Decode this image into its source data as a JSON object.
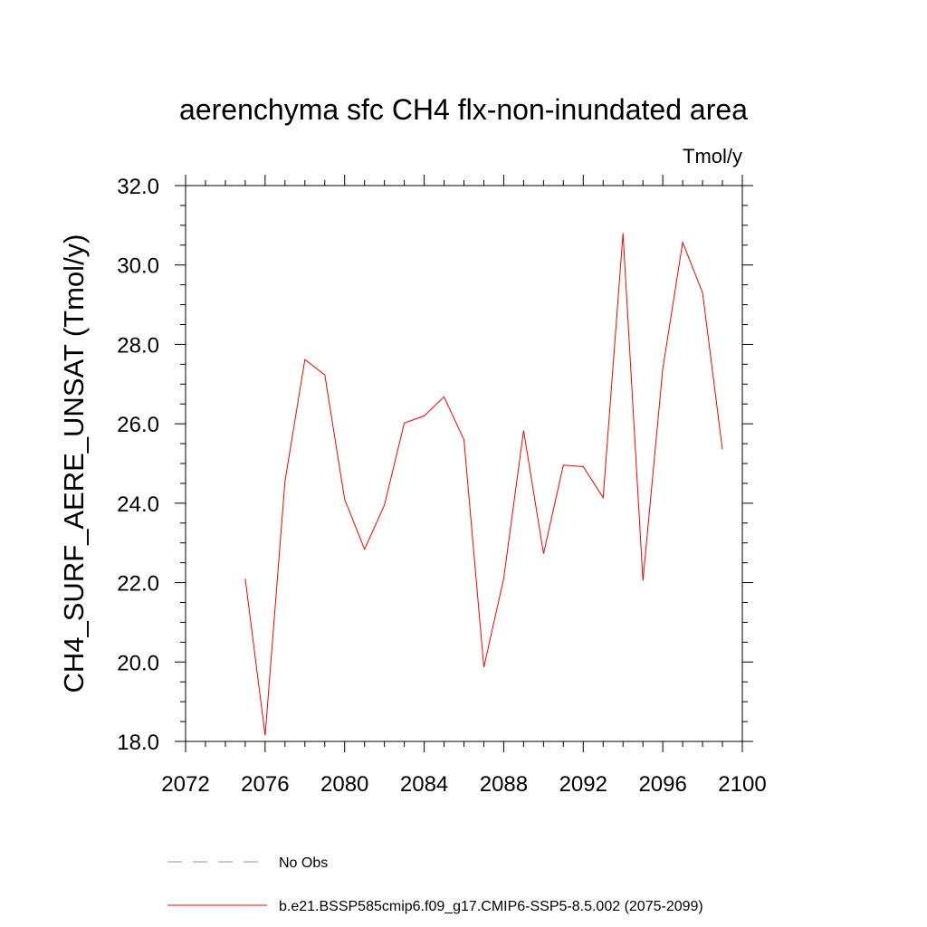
{
  "chart_data": {
    "type": "line",
    "title": "aerenchyma sfc CH4 flx-non-inundated area",
    "units_label": "Tmol/y",
    "xlabel": "",
    "ylabel": "CH4_SURF_AERE_UNSAT  (Tmol/y)",
    "xlim": [
      2072,
      2100
    ],
    "ylim": [
      18.0,
      32.0
    ],
    "x_ticks": [
      "2072",
      "2076",
      "2080",
      "2084",
      "2088",
      "2092",
      "2096",
      "2100"
    ],
    "y_ticks": [
      "18.0",
      "20.0",
      "22.0",
      "24.0",
      "26.0",
      "28.0",
      "30.0",
      "32.0"
    ],
    "grid": false,
    "legend_position": "bottom",
    "series": [
      {
        "name": "b.e21.BSSP585cmip6.f09_g17.CMIP6-SSP5-8.5.002 (2075-2099)",
        "color": "#ff0000",
        "style": "solid",
        "x": [
          2075,
          2076,
          2077,
          2078,
          2079,
          2080,
          2081,
          2082,
          2083,
          2084,
          2085,
          2086,
          2087,
          2088,
          2089,
          2090,
          2091,
          2092,
          2093,
          2094,
          2095,
          2096,
          2097,
          2098,
          2099
        ],
        "y": [
          22.1,
          18.15,
          24.55,
          27.62,
          27.23,
          24.1,
          22.84,
          23.95,
          26.02,
          26.2,
          26.68,
          25.6,
          19.87,
          22.1,
          25.83,
          22.73,
          24.96,
          24.92,
          24.14,
          30.8,
          22.05,
          27.38,
          30.57,
          29.3,
          25.35
        ]
      },
      {
        "name": "No Obs",
        "color": "#8c8cc8",
        "style": "dashed",
        "x": [],
        "y": []
      }
    ]
  }
}
